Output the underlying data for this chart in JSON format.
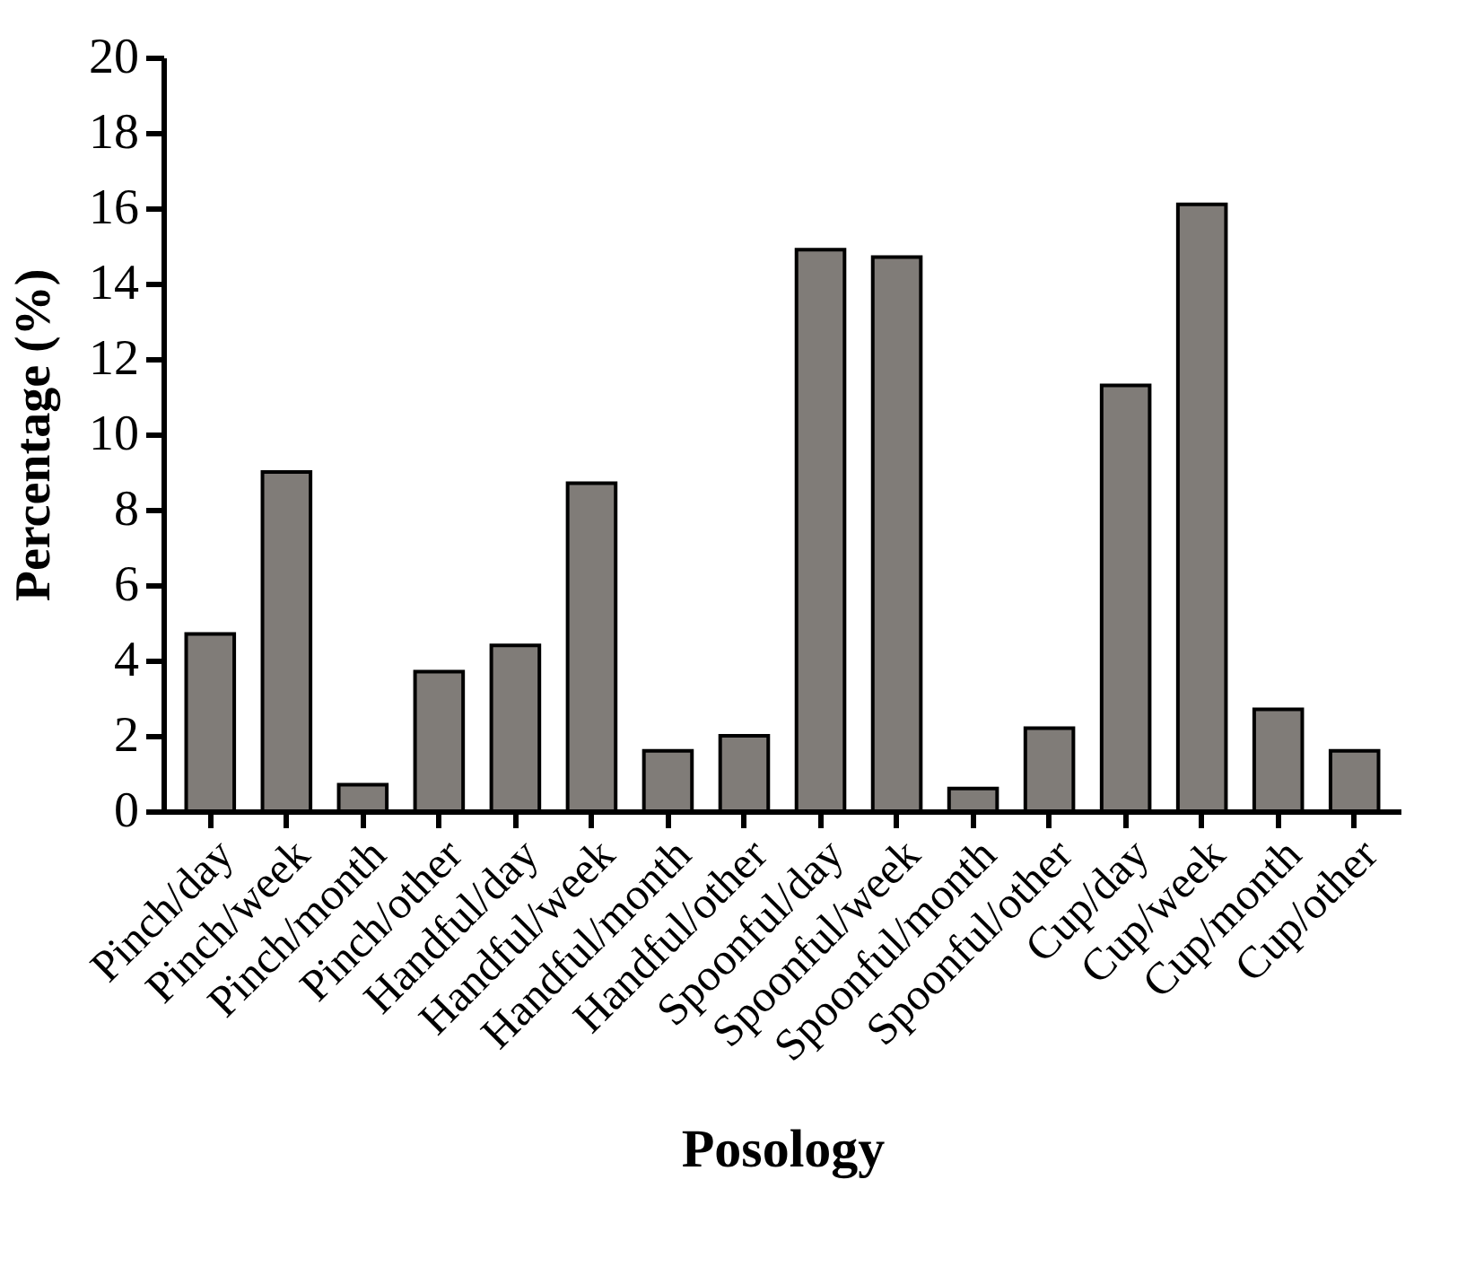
{
  "chart_data": {
    "type": "bar",
    "xlabel": "Posology",
    "ylabel": "Percentage (%)",
    "categories": [
      "Pinch/day",
      "Pinch/week",
      "Pinch/month",
      "Pinch/other",
      "Handful/day",
      "Handful/week",
      "Handful/month",
      "Handful/other",
      "Spoonful/day",
      "Spoonful/week",
      "Spoonful/month",
      "Spoonful/other",
      "Cup/day",
      "Cup/week",
      "Cup/month",
      "Cup/other"
    ],
    "values": [
      4.7,
      9.0,
      0.7,
      3.7,
      4.4,
      8.7,
      1.6,
      2.0,
      14.9,
      14.7,
      0.6,
      2.2,
      11.3,
      16.1,
      2.7,
      1.6
    ],
    "color": "#807c78",
    "ylim": [
      0,
      20
    ],
    "yticks": [
      0,
      2,
      4,
      6,
      8,
      10,
      12,
      14,
      16,
      18,
      20
    ],
    "grid": false
  }
}
